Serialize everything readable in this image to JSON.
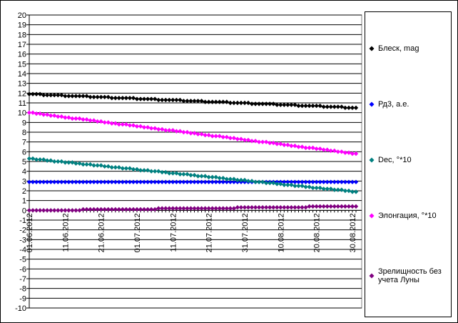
{
  "chart_data": {
    "type": "line",
    "categories": [
      "01.06.2012",
      null,
      null,
      null,
      null,
      null,
      null,
      null,
      null,
      null,
      "11.06.2012",
      null,
      null,
      null,
      null,
      null,
      null,
      null,
      null,
      null,
      "21.06.2012",
      null,
      null,
      null,
      null,
      null,
      null,
      null,
      null,
      null,
      "01.07.2012",
      null,
      null,
      null,
      null,
      null,
      null,
      null,
      null,
      null,
      "11.07.2012",
      null,
      null,
      null,
      null,
      null,
      null,
      null,
      null,
      null,
      "21.07.2012",
      null,
      null,
      null,
      null,
      null,
      null,
      null,
      null,
      null,
      "31.07.2012",
      null,
      null,
      null,
      null,
      null,
      null,
      null,
      null,
      null,
      "10.08.2012",
      null,
      null,
      null,
      null,
      null,
      null,
      null,
      null,
      null,
      "20.08.2012",
      null,
      null,
      null,
      null,
      null,
      null,
      null,
      null,
      null,
      "30.08.2012",
      null
    ],
    "ylim": [
      -10,
      20
    ],
    "yticks": [
      -10,
      -9,
      -8,
      -7,
      -6,
      -5,
      -4,
      -3,
      -2,
      -1,
      0,
      1,
      2,
      3,
      4,
      5,
      6,
      7,
      8,
      9,
      10,
      11,
      12,
      13,
      14,
      15,
      16,
      17,
      18,
      19,
      20
    ],
    "grid": true,
    "legend": "right",
    "series": [
      {
        "name": "Блеск, mag",
        "color": "#000000",
        "values": [
          11.9,
          11.9,
          11.9,
          11.9,
          11.8,
          11.8,
          11.8,
          11.8,
          11.8,
          11.8,
          11.7,
          11.7,
          11.7,
          11.7,
          11.7,
          11.7,
          11.7,
          11.6,
          11.6,
          11.6,
          11.6,
          11.6,
          11.6,
          11.5,
          11.5,
          11.5,
          11.5,
          11.5,
          11.5,
          11.5,
          11.4,
          11.4,
          11.4,
          11.4,
          11.4,
          11.4,
          11.3,
          11.3,
          11.3,
          11.3,
          11.3,
          11.3,
          11.3,
          11.2,
          11.2,
          11.2,
          11.2,
          11.2,
          11.2,
          11.1,
          11.1,
          11.1,
          11.1,
          11.1,
          11.1,
          11.1,
          11.0,
          11.0,
          11.0,
          11.0,
          11.0,
          11.0,
          10.9,
          10.9,
          10.9,
          10.9,
          10.9,
          10.9,
          10.9,
          10.8,
          10.8,
          10.8,
          10.8,
          10.8,
          10.8,
          10.7,
          10.7,
          10.7,
          10.7,
          10.7,
          10.7,
          10.7,
          10.6,
          10.6,
          10.6,
          10.6,
          10.6,
          10.6,
          10.5,
          10.5,
          10.5,
          10.5
        ]
      },
      {
        "name": "Рд3, а.е.",
        "color": "#0000ff",
        "values": [
          2.9,
          2.9,
          2.9,
          2.9,
          2.9,
          2.9,
          2.9,
          2.9,
          2.9,
          2.9,
          2.9,
          2.9,
          2.9,
          2.9,
          2.9,
          2.9,
          2.9,
          2.9,
          2.9,
          2.9,
          2.9,
          2.9,
          2.9,
          2.9,
          2.9,
          2.9,
          2.9,
          2.9,
          2.9,
          2.9,
          2.9,
          2.9,
          2.9,
          2.9,
          2.9,
          2.9,
          2.9,
          2.9,
          2.9,
          2.9,
          2.9,
          2.9,
          2.9,
          2.9,
          2.9,
          2.9,
          2.9,
          2.9,
          2.9,
          2.9,
          2.9,
          2.9,
          2.9,
          2.9,
          2.9,
          2.9,
          2.9,
          2.9,
          2.9,
          2.9,
          2.9,
          2.9,
          2.9,
          2.9,
          2.9,
          2.9,
          2.9,
          2.9,
          2.9,
          2.9,
          2.9,
          2.9,
          2.9,
          2.9,
          2.9,
          2.9,
          2.9,
          2.9,
          2.9,
          2.9,
          2.9,
          2.9,
          2.9,
          2.9,
          2.9,
          2.9,
          2.9,
          2.9,
          2.9,
          2.9,
          2.9,
          2.9
        ]
      },
      {
        "name": "Dec, °*10",
        "color": "#008080",
        "values": [
          5.3,
          5.3,
          5.2,
          5.2,
          5.2,
          5.1,
          5.1,
          5.0,
          5.0,
          5.0,
          4.9,
          4.9,
          4.9,
          4.8,
          4.8,
          4.7,
          4.7,
          4.7,
          4.6,
          4.6,
          4.6,
          4.5,
          4.5,
          4.4,
          4.4,
          4.4,
          4.3,
          4.3,
          4.3,
          4.2,
          4.2,
          4.1,
          4.1,
          4.1,
          4.0,
          4.0,
          4.0,
          3.9,
          3.9,
          3.8,
          3.8,
          3.8,
          3.7,
          3.7,
          3.7,
          3.6,
          3.6,
          3.5,
          3.5,
          3.5,
          3.4,
          3.4,
          3.4,
          3.3,
          3.3,
          3.2,
          3.2,
          3.2,
          3.1,
          3.1,
          3.1,
          3.0,
          3.0,
          2.9,
          2.9,
          2.9,
          2.8,
          2.8,
          2.8,
          2.7,
          2.7,
          2.6,
          2.6,
          2.6,
          2.5,
          2.5,
          2.5,
          2.4,
          2.4,
          2.3,
          2.3,
          2.3,
          2.2,
          2.2,
          2.2,
          2.1,
          2.1,
          2.1,
          2.0,
          2.0,
          1.9,
          1.9
        ]
      },
      {
        "name": "Элонгация, °*10",
        "color": "#ff00ff",
        "values": [
          10.0,
          10.0,
          9.9,
          9.9,
          9.8,
          9.8,
          9.7,
          9.7,
          9.6,
          9.6,
          9.5,
          9.5,
          9.4,
          9.4,
          9.4,
          9.3,
          9.3,
          9.2,
          9.2,
          9.1,
          9.1,
          9.0,
          9.0,
          8.9,
          8.9,
          8.8,
          8.8,
          8.8,
          8.7,
          8.7,
          8.6,
          8.6,
          8.5,
          8.5,
          8.4,
          8.4,
          8.3,
          8.3,
          8.2,
          8.2,
          8.2,
          8.1,
          8.1,
          8.0,
          8.0,
          7.9,
          7.9,
          7.8,
          7.8,
          7.7,
          7.7,
          7.6,
          7.6,
          7.6,
          7.5,
          7.5,
          7.4,
          7.4,
          7.3,
          7.3,
          7.2,
          7.2,
          7.1,
          7.1,
          7.0,
          7.0,
          7.0,
          6.9,
          6.9,
          6.8,
          6.8,
          6.7,
          6.7,
          6.6,
          6.6,
          6.5,
          6.5,
          6.4,
          6.4,
          6.4,
          6.3,
          6.3,
          6.2,
          6.2,
          6.1,
          6.1,
          6.0,
          6.0,
          5.9,
          5.9,
          5.8,
          5.8
        ]
      },
      {
        "name": "Зрелищность без учета Луны",
        "color": "#800080",
        "values": [
          0,
          0,
          0,
          0,
          0,
          0,
          0,
          0,
          0,
          0,
          0,
          0,
          0,
          0,
          0,
          0.1,
          0.1,
          0.1,
          0.1,
          0.1,
          0.1,
          0.1,
          0.1,
          0.1,
          0.1,
          0.1,
          0.1,
          0.1,
          0.1,
          0.1,
          0.1,
          0.1,
          0.1,
          0.1,
          0.1,
          0.1,
          0.2,
          0.2,
          0.2,
          0.2,
          0.2,
          0.2,
          0.2,
          0.2,
          0.2,
          0.2,
          0.2,
          0.2,
          0.2,
          0.2,
          0.2,
          0.2,
          0.2,
          0.2,
          0.2,
          0.2,
          0.2,
          0.2,
          0.3,
          0.3,
          0.3,
          0.3,
          0.3,
          0.3,
          0.3,
          0.3,
          0.3,
          0.3,
          0.3,
          0.3,
          0.3,
          0.3,
          0.3,
          0.3,
          0.3,
          0.3,
          0.3,
          0.3,
          0.4,
          0.4,
          0.4,
          0.4,
          0.4,
          0.4,
          0.4,
          0.4,
          0.4,
          0.4,
          0.4,
          0.4,
          0.4,
          0.4
        ]
      }
    ]
  }
}
